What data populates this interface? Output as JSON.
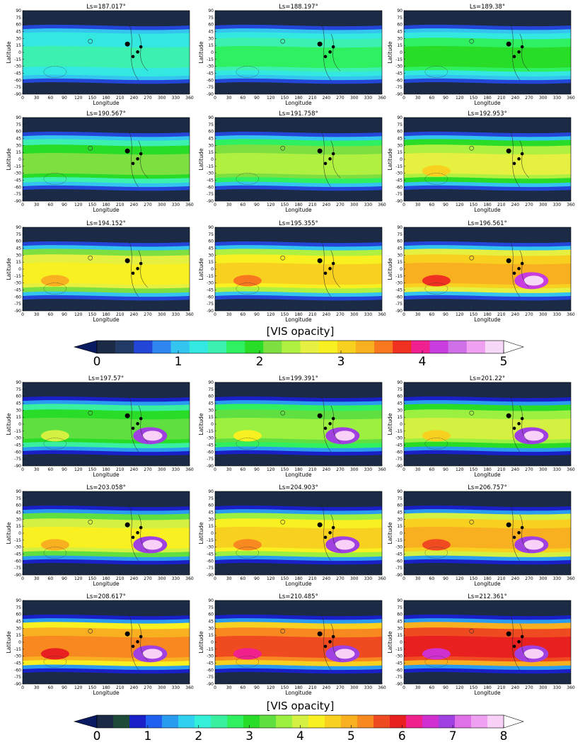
{
  "chart_data": [
    {
      "type": "map",
      "title": "Ls=187.017°",
      "xlabel": "Longitude",
      "ylabel": "Latitude",
      "xlim": [
        0,
        360
      ],
      "ylim": [
        -90,
        90
      ],
      "xticks": [
        0,
        30,
        60,
        90,
        120,
        150,
        180,
        210,
        240,
        270,
        300,
        330,
        360
      ],
      "yticks": [
        -90,
        -75,
        -60,
        -45,
        -30,
        -15,
        0,
        15,
        30,
        45,
        60,
        75,
        90
      ]
    },
    {
      "type": "map",
      "title": "Ls=188.197°",
      "xlabel": "Longitude",
      "ylabel": "Latitude",
      "xlim": [
        0,
        360
      ],
      "ylim": [
        -90,
        90
      ],
      "xticks": [
        0,
        30,
        60,
        90,
        120,
        150,
        180,
        210,
        240,
        270,
        300,
        330,
        360
      ],
      "yticks": [
        -90,
        -75,
        -60,
        -45,
        -30,
        -15,
        0,
        15,
        30,
        45,
        60,
        75,
        90
      ]
    },
    {
      "type": "map",
      "title": "Ls=189.38°",
      "xlabel": "Longitude",
      "ylabel": "Latitude",
      "xlim": [
        0,
        360
      ],
      "ylim": [
        -90,
        90
      ],
      "xticks": [
        0,
        30,
        60,
        90,
        120,
        150,
        180,
        210,
        240,
        270,
        300,
        330,
        360
      ],
      "yticks": [
        -90,
        -75,
        -60,
        -45,
        -30,
        -15,
        0,
        15,
        30,
        45,
        60,
        75,
        90
      ]
    },
    {
      "type": "map",
      "title": "Ls=190.567°",
      "xlabel": "Longitude",
      "ylabel": "Latitude",
      "xlim": [
        0,
        360
      ],
      "ylim": [
        -90,
        90
      ],
      "xticks": [
        0,
        30,
        60,
        90,
        120,
        150,
        180,
        210,
        240,
        270,
        300,
        330,
        360
      ],
      "yticks": [
        -90,
        -75,
        -60,
        -45,
        -30,
        -15,
        0,
        15,
        30,
        45,
        60,
        75,
        90
      ]
    },
    {
      "type": "map",
      "title": "Ls=191.758°",
      "xlabel": "Longitude",
      "ylabel": "Latitude",
      "xlim": [
        0,
        360
      ],
      "ylim": [
        -90,
        90
      ],
      "xticks": [
        0,
        30,
        60,
        90,
        120,
        150,
        180,
        210,
        240,
        270,
        300,
        330,
        360
      ],
      "yticks": [
        -90,
        -75,
        -60,
        -45,
        -30,
        -15,
        0,
        15,
        30,
        45,
        60,
        75,
        90
      ]
    },
    {
      "type": "map",
      "title": "Ls=192.953°",
      "xlabel": "Longitude",
      "ylabel": "Latitude",
      "xlim": [
        0,
        360
      ],
      "ylim": [
        -90,
        90
      ],
      "xticks": [
        0,
        30,
        60,
        90,
        120,
        150,
        180,
        210,
        240,
        270,
        300,
        330,
        360
      ],
      "yticks": [
        -90,
        -75,
        -60,
        -45,
        -30,
        -15,
        0,
        15,
        30,
        45,
        60,
        75,
        90
      ]
    },
    {
      "type": "map",
      "title": "Ls=194.152°",
      "xlabel": "Longitude",
      "ylabel": "Latitude",
      "xlim": [
        0,
        360
      ],
      "ylim": [
        -90,
        90
      ],
      "xticks": [
        0,
        30,
        60,
        90,
        120,
        150,
        180,
        210,
        240,
        270,
        300,
        330,
        360
      ],
      "yticks": [
        -90,
        -75,
        -60,
        -45,
        -30,
        -15,
        0,
        15,
        30,
        45,
        60,
        75,
        90
      ]
    },
    {
      "type": "map",
      "title": "Ls=195.355°",
      "xlabel": "Longitude",
      "ylabel": "Latitude",
      "xlim": [
        0,
        360
      ],
      "ylim": [
        -90,
        90
      ],
      "xticks": [
        0,
        30,
        60,
        90,
        120,
        150,
        180,
        210,
        240,
        270,
        300,
        330,
        360
      ],
      "yticks": [
        -90,
        -75,
        -60,
        -45,
        -30,
        -15,
        0,
        15,
        30,
        45,
        60,
        75,
        90
      ]
    },
    {
      "type": "map",
      "title": "Ls=196.561°",
      "xlabel": "Longitude",
      "ylabel": "Latitude",
      "xlim": [
        0,
        360
      ],
      "ylim": [
        -90,
        90
      ],
      "xticks": [
        0,
        30,
        60,
        90,
        120,
        150,
        180,
        210,
        240,
        270,
        300,
        330,
        360
      ],
      "yticks": [
        -90,
        -75,
        -60,
        -45,
        -30,
        -15,
        0,
        15,
        30,
        45,
        60,
        75,
        90
      ]
    },
    {
      "type": "colorbar",
      "label": "[VIS opacity]",
      "lim": [
        0,
        5
      ],
      "ticks": [
        0,
        1,
        2,
        3,
        4,
        5
      ],
      "colors": [
        "#1b2a45",
        "#223a66",
        "#2346d8",
        "#2f86f0",
        "#33c4f0",
        "#33e8e0",
        "#3cf0b0",
        "#2ef060",
        "#28dc28",
        "#7ee040",
        "#b0f040",
        "#e6f040",
        "#f8f020",
        "#f8d020",
        "#f8b020",
        "#f87820",
        "#f03020",
        "#f02090",
        "#c83ce0",
        "#d070e8",
        "#f0a0f0",
        "#f8d8f8"
      ],
      "under": "#0a1a60",
      "over": "#ffffff"
    },
    {
      "type": "map",
      "title": "Ls=197.57°",
      "xlabel": "Longitude",
      "ylabel": "Latitude",
      "xlim": [
        0,
        360
      ],
      "ylim": [
        -90,
        90
      ],
      "xticks": [
        0,
        30,
        60,
        90,
        120,
        150,
        180,
        210,
        240,
        270,
        300,
        330,
        360
      ],
      "yticks": [
        -90,
        -75,
        -60,
        -45,
        -30,
        -15,
        0,
        15,
        30,
        45,
        60,
        75,
        90
      ]
    },
    {
      "type": "map",
      "title": "Ls=199.391°",
      "xlabel": "Longitude",
      "ylabel": "Latitude",
      "xlim": [
        0,
        360
      ],
      "ylim": [
        -90,
        90
      ],
      "xticks": [
        0,
        30,
        60,
        90,
        120,
        150,
        180,
        210,
        240,
        270,
        300,
        330,
        360
      ],
      "yticks": [
        -90,
        -75,
        -60,
        -45,
        -30,
        -15,
        0,
        15,
        30,
        45,
        60,
        75,
        90
      ]
    },
    {
      "type": "map",
      "title": "Ls=201.22°",
      "xlabel": "Longitude",
      "ylabel": "Latitude",
      "xlim": [
        0,
        360
      ],
      "ylim": [
        -90,
        90
      ],
      "xticks": [
        0,
        30,
        60,
        90,
        120,
        150,
        180,
        210,
        240,
        270,
        300,
        330,
        360
      ],
      "yticks": [
        -90,
        -75,
        -60,
        -45,
        -30,
        -15,
        0,
        15,
        30,
        45,
        60,
        75,
        90
      ]
    },
    {
      "type": "map",
      "title": "Ls=203.058°",
      "xlabel": "Longitude",
      "ylabel": "Latitude",
      "xlim": [
        0,
        360
      ],
      "ylim": [
        -90,
        90
      ],
      "xticks": [
        0,
        30,
        60,
        90,
        120,
        150,
        180,
        210,
        240,
        270,
        300,
        330,
        360
      ],
      "yticks": [
        -90,
        -75,
        -60,
        -45,
        -30,
        -15,
        0,
        15,
        30,
        45,
        60,
        75,
        90
      ]
    },
    {
      "type": "map",
      "title": "Ls=204.903°",
      "xlabel": "Longitude",
      "ylabel": "Latitude",
      "xlim": [
        0,
        360
      ],
      "ylim": [
        -90,
        90
      ],
      "xticks": [
        0,
        30,
        60,
        90,
        120,
        150,
        180,
        210,
        240,
        270,
        300,
        330,
        360
      ],
      "yticks": [
        -90,
        -75,
        -60,
        -45,
        -30,
        -15,
        0,
        15,
        30,
        45,
        60,
        75,
        90
      ]
    },
    {
      "type": "map",
      "title": "Ls=206.757°",
      "xlabel": "Longitude",
      "ylabel": "Latitude",
      "xlim": [
        0,
        360
      ],
      "ylim": [
        -90,
        90
      ],
      "xticks": [
        0,
        30,
        60,
        90,
        120,
        150,
        180,
        210,
        240,
        270,
        300,
        330,
        360
      ],
      "yticks": [
        -90,
        -75,
        -60,
        -45,
        -30,
        -15,
        0,
        15,
        30,
        45,
        60,
        75,
        90
      ]
    },
    {
      "type": "map",
      "title": "Ls=208.617°",
      "xlabel": "Longitude",
      "ylabel": "Latitude",
      "xlim": [
        0,
        360
      ],
      "ylim": [
        -90,
        90
      ],
      "xticks": [
        0,
        30,
        60,
        90,
        120,
        150,
        180,
        210,
        240,
        270,
        300,
        330,
        360
      ],
      "yticks": [
        -90,
        -75,
        -60,
        -45,
        -30,
        -15,
        0,
        15,
        30,
        45,
        60,
        75,
        90
      ]
    },
    {
      "type": "map",
      "title": "Ls=210.485°",
      "xlabel": "Longitude",
      "ylabel": "Latitude",
      "xlim": [
        0,
        360
      ],
      "ylim": [
        -90,
        90
      ],
      "xticks": [
        0,
        30,
        60,
        90,
        120,
        150,
        180,
        210,
        240,
        270,
        300,
        330,
        360
      ],
      "yticks": [
        -90,
        -75,
        -60,
        -45,
        -30,
        -15,
        0,
        15,
        30,
        45,
        60,
        75,
        90
      ]
    },
    {
      "type": "map",
      "title": "Ls=212.361°",
      "xlabel": "Longitude",
      "ylabel": "Latitude",
      "xlim": [
        0,
        360
      ],
      "ylim": [
        -90,
        90
      ],
      "xticks": [
        0,
        30,
        60,
        90,
        120,
        150,
        180,
        210,
        240,
        270,
        300,
        330,
        360
      ],
      "yticks": [
        -90,
        -75,
        -60,
        -45,
        -30,
        -15,
        0,
        15,
        30,
        45,
        60,
        75,
        90
      ]
    },
    {
      "type": "colorbar",
      "label": "[VIS opacity]",
      "lim": [
        0,
        8
      ],
      "ticks": [
        0,
        1,
        2,
        3,
        4,
        5,
        6,
        7,
        8
      ],
      "colors": [
        "#1b2a45",
        "#1e4a3a",
        "#1a20c8",
        "#2060f0",
        "#2a9cf0",
        "#30d0f0",
        "#34f0d8",
        "#38f0a0",
        "#30f060",
        "#28dc28",
        "#60e040",
        "#9cf040",
        "#d4f040",
        "#f8f020",
        "#f8d020",
        "#f8b020",
        "#f88820",
        "#f04a20",
        "#e82020",
        "#f0208c",
        "#d030d0",
        "#a040e0",
        "#e070e8",
        "#f0a0f0",
        "#f8d0f8"
      ],
      "under": "#0a1a60",
      "over": "#ffffff"
    }
  ]
}
